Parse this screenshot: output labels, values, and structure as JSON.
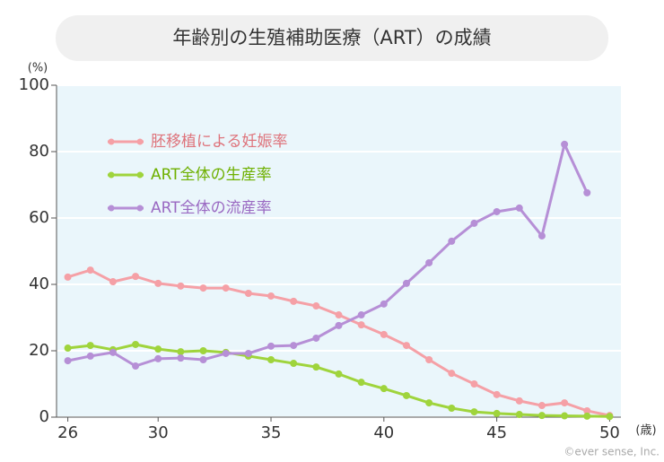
{
  "chart_data": {
    "type": "line",
    "title": "年齢別の生殖補助医療（ART）の成績",
    "y_unit": "(%)",
    "x_unit": "(歳)",
    "credit": "©ever sense, Inc.",
    "x": [
      26,
      27,
      28,
      29,
      30,
      31,
      32,
      33,
      34,
      35,
      36,
      37,
      38,
      39,
      40,
      41,
      42,
      43,
      44,
      45,
      46,
      47,
      48,
      49,
      50
    ],
    "series": [
      {
        "name": "胚移植による妊娠率",
        "color": "#f5a0a6",
        "values": [
          42.2,
          44.3,
          40.8,
          42.4,
          40.3,
          39.5,
          38.9,
          38.9,
          37.3,
          36.5,
          34.9,
          33.5,
          30.8,
          27.8,
          24.9,
          21.6,
          17.3,
          13.2,
          10.0,
          6.8,
          4.9,
          3.5,
          4.3,
          1.9,
          0.5
        ]
      },
      {
        "name": "ART全体の生産率",
        "color": "#9fd43c",
        "values": [
          20.8,
          21.6,
          20.3,
          21.9,
          20.5,
          19.7,
          20.0,
          19.5,
          18.4,
          17.3,
          16.2,
          15.1,
          13.0,
          10.5,
          8.6,
          6.5,
          4.3,
          2.7,
          1.6,
          1.1,
          0.8,
          0.5,
          0.4,
          0.3,
          0.2
        ]
      },
      {
        "name": "ART全体の流産率",
        "color": "#b68fd6",
        "values": [
          17.0,
          18.4,
          19.5,
          15.4,
          17.6,
          17.8,
          17.3,
          19.2,
          19.2,
          21.4,
          21.6,
          23.8,
          27.6,
          30.8,
          34.1,
          40.3,
          46.5,
          53.0,
          58.4,
          61.9,
          63.0,
          54.6,
          82.2,
          67.6,
          null
        ]
      }
    ],
    "xlim": [
      25.5,
      50.5
    ],
    "xticks": [
      26,
      30,
      35,
      40,
      45,
      50
    ],
    "ylim": [
      0,
      100
    ],
    "yticks": [
      0,
      20,
      40,
      60,
      80,
      100
    ],
    "grid": true,
    "legend": "top-left"
  }
}
